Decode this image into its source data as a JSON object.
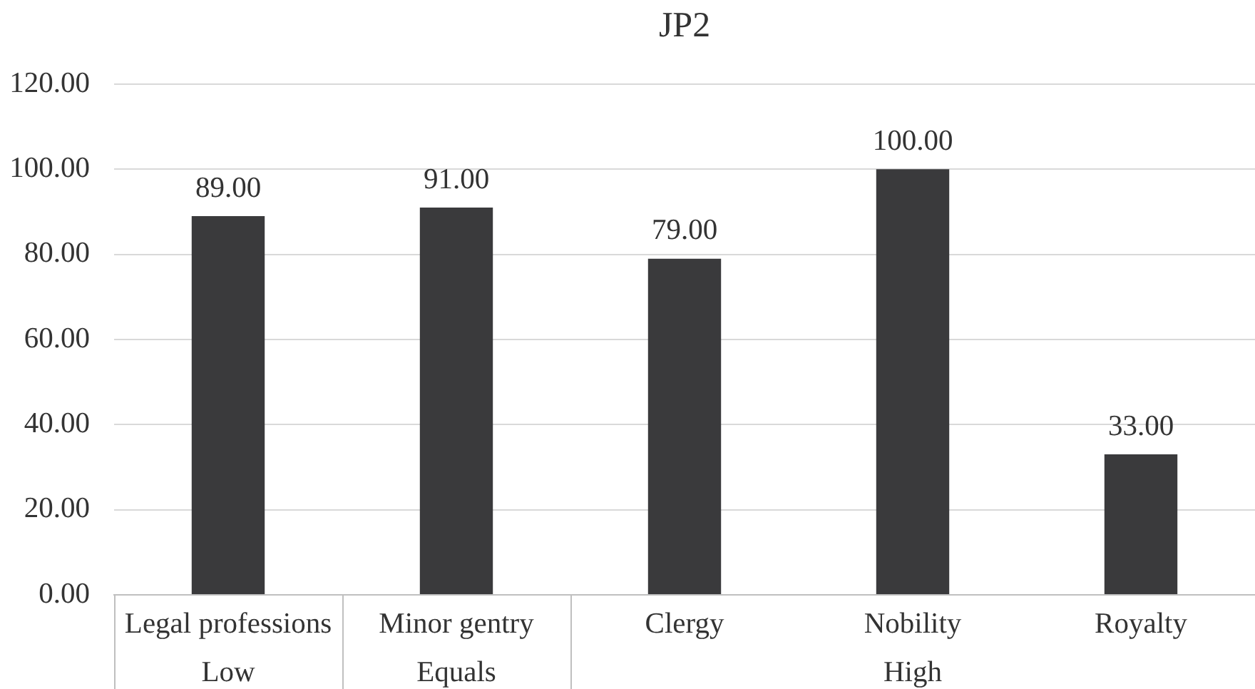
{
  "chart_data": {
    "type": "bar",
    "title": "JP2",
    "categories": [
      "Legal professions",
      "Minor gentry",
      "Clergy",
      "Nobility",
      "Royalty"
    ],
    "values": [
      89,
      91,
      79,
      100,
      33
    ],
    "value_labels": [
      "89.00",
      "91.00",
      "79.00",
      "100.00",
      "33.00"
    ],
    "color": "#3a3a3c",
    "ylim": [
      0,
      120
    ],
    "yticks": [
      {
        "value": 0,
        "label": "0.00"
      },
      {
        "value": 20,
        "label": "20.00"
      },
      {
        "value": 40,
        "label": "40.00"
      },
      {
        "value": 60,
        "label": "60.00"
      },
      {
        "value": 80,
        "label": "80.00"
      },
      {
        "value": 100,
        "label": "100.00"
      },
      {
        "value": 120,
        "label": "120.00"
      }
    ],
    "grid": "y",
    "annotations": [
      "Low",
      "Equals",
      "High"
    ]
  }
}
